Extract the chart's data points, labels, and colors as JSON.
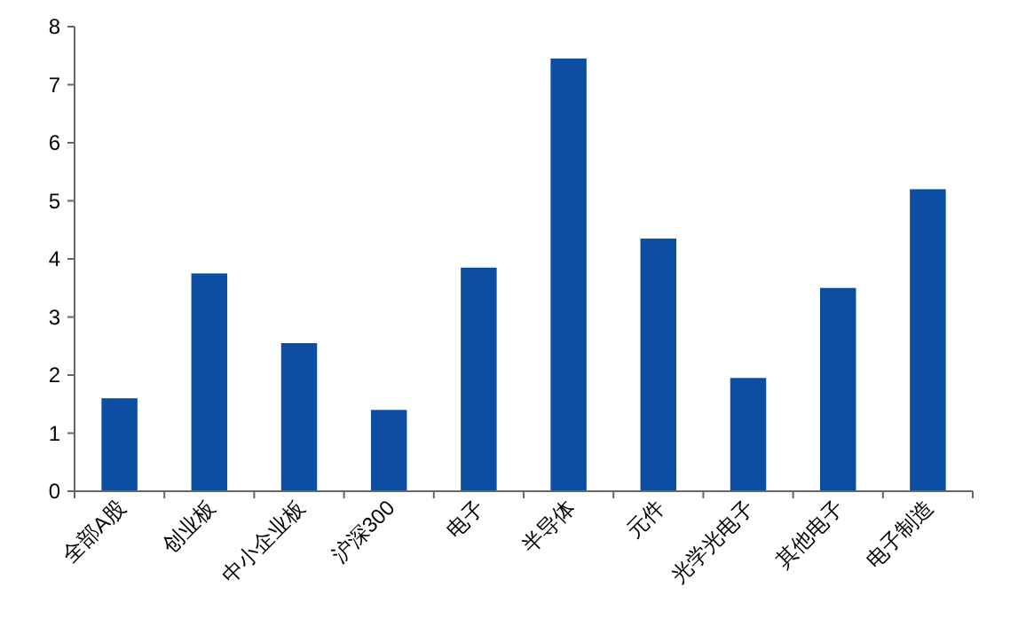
{
  "chart_data": {
    "type": "bar",
    "categories": [
      "全部A股",
      "创业板",
      "中小企业板",
      "沪深300",
      "电子",
      "半导体",
      "元件",
      "光学光电子",
      "其他电子",
      "电子制造"
    ],
    "values": [
      1.6,
      3.75,
      2.55,
      1.4,
      3.85,
      7.45,
      4.35,
      1.95,
      3.5,
      5.2
    ],
    "color": "#0b4ea2",
    "ylim": [
      0,
      8
    ],
    "yticks": [
      0,
      1,
      2,
      3,
      4,
      5,
      6,
      7,
      8
    ],
    "grid": false
  }
}
